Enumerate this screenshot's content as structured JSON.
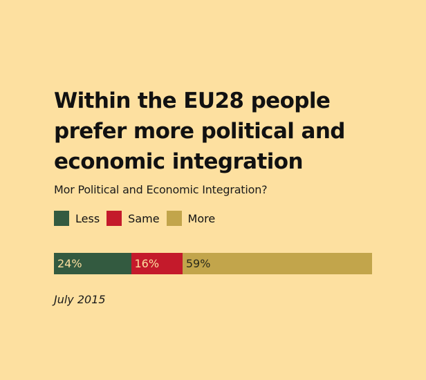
{
  "chart_data": {
    "type": "bar",
    "orientation": "horizontal-stacked",
    "title": "Within the EU28 people prefer more political and economic integration",
    "subtitle": "Mor Political and Economic Integration?",
    "categories": [
      "Less",
      "Same",
      "More"
    ],
    "series": [
      {
        "name": "Less",
        "value": 24,
        "label": "24%",
        "color": "#335a40",
        "label_color": "#fde0a0"
      },
      {
        "name": "Same",
        "value": 16,
        "label": "16%",
        "color": "#c41a2b",
        "label_color": "#fde0a0"
      },
      {
        "name": "More",
        "value": 59,
        "label": "59%",
        "color": "#c2a54b",
        "label_color": "#2a2a1a"
      }
    ],
    "legend": {
      "position": "top-left",
      "items": [
        {
          "label": "Less",
          "color": "#335a40"
        },
        {
          "label": "Same",
          "color": "#c41a2b"
        },
        {
          "label": "More",
          "color": "#c2a54b"
        }
      ]
    },
    "note": "July 2015",
    "xlabel": "",
    "ylabel": "",
    "grid": false
  },
  "colors": {
    "background": "#fde0a0",
    "text": "#111111"
  }
}
